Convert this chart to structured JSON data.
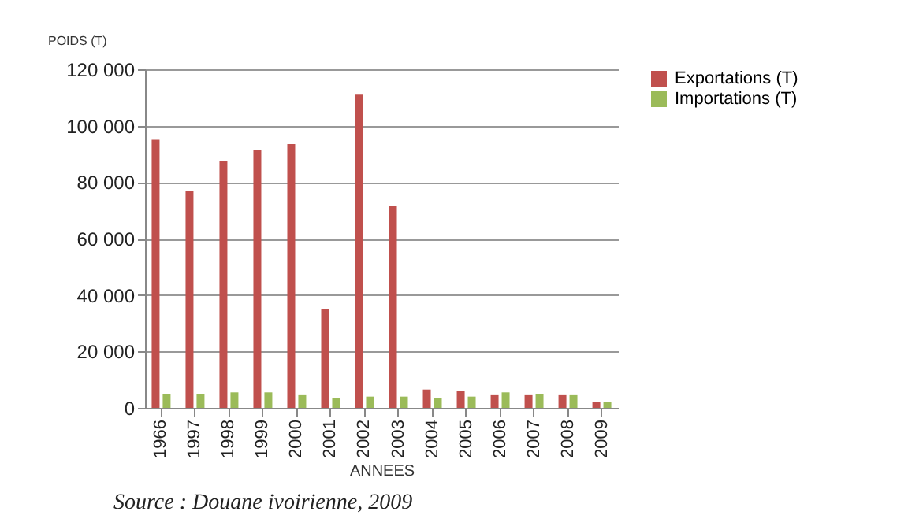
{
  "chart_data": {
    "type": "bar",
    "ylabel": "POIDS (T)",
    "xlabel": "ANNEES",
    "categories": [
      "1966",
      "1997",
      "1998",
      "1999",
      "2000",
      "2001",
      "2002",
      "2003",
      "2004",
      "2005",
      "2006",
      "2007",
      "2008",
      "2009"
    ],
    "series": [
      {
        "name": "Exportations (T)",
        "color": "#c0504d",
        "values": [
          95000,
          77000,
          87500,
          91500,
          93500,
          35000,
          111000,
          71500,
          6500,
          6000,
          4500,
          4500,
          4500,
          2000
        ]
      },
      {
        "name": "Importations (T)",
        "color": "#9bbb59",
        "values": [
          5000,
          5000,
          5500,
          5500,
          4500,
          3500,
          4000,
          4000,
          3500,
          4000,
          5500,
          5000,
          4500,
          2000
        ]
      }
    ],
    "ylim": [
      0,
      120000
    ],
    "yticks": [
      {
        "value": 0,
        "label": "0"
      },
      {
        "value": 20000,
        "label": "20 000"
      },
      {
        "value": 40000,
        "label": "40 000"
      },
      {
        "value": 60000,
        "label": "60 000"
      },
      {
        "value": 80000,
        "label": "80 000"
      },
      {
        "value": 100000,
        "label": "100 000"
      },
      {
        "value": 120000,
        "label": "120 000"
      }
    ],
    "grid": "y",
    "legend": "right",
    "annotations": [
      "Source : Douane ivoirienne, 2009"
    ]
  }
}
